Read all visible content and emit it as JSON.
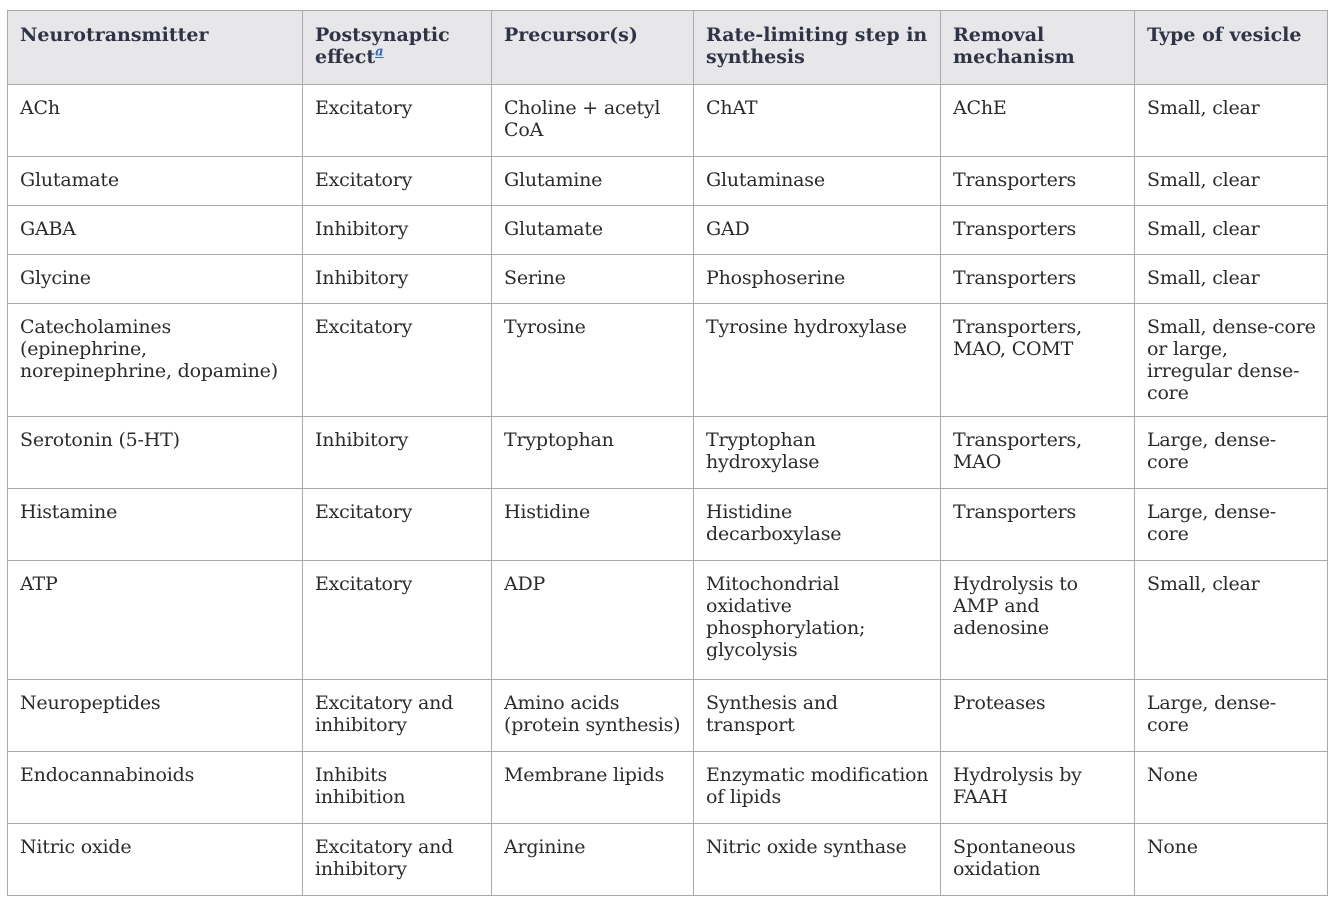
{
  "headers": {
    "neurotransmitter": "Neurotransmitter",
    "postsynaptic": "Postsynaptic effect",
    "footnote": "a",
    "precursor": "Precursor(s)",
    "rate_limiting": "Rate-limiting step in synthesis",
    "removal": "Removal mechanism",
    "vesicle": "Type of vesicle"
  },
  "rows": [
    {
      "nt": "ACh",
      "effect": "Excitatory",
      "precursor": "Choline + acetyl CoA",
      "rate": "ChAT",
      "removal": "AChE",
      "vesicle": "Small, clear"
    },
    {
      "nt": "Glutamate",
      "effect": "Excitatory",
      "precursor": "Glutamine",
      "rate": "Glutaminase",
      "removal": "Transporters",
      "vesicle": "Small, clear"
    },
    {
      "nt": "GABA",
      "effect": "Inhibitory",
      "precursor": "Glutamate",
      "rate": "GAD",
      "removal": "Transporters",
      "vesicle": "Small, clear"
    },
    {
      "nt": "Glycine",
      "effect": "Inhibitory",
      "precursor": "Serine",
      "rate": "Phosphoserine",
      "removal": "Transporters",
      "vesicle": "Small, clear"
    },
    {
      "nt": "Catecholamines (epinephrine, norepinephrine, dopamine)",
      "effect": "Excitatory",
      "precursor": "Tyrosine",
      "rate": "Tyrosine hydroxylase",
      "removal": "Transporters, MAO, COMT",
      "vesicle": "Small, dense-core or large, irregular dense-core"
    },
    {
      "nt": "Serotonin (5-HT)",
      "effect": "Inhibitory",
      "precursor": "Tryptophan",
      "rate": "Tryptophan hydroxylase",
      "removal": "Transporters, MAO",
      "vesicle": "Large, dense-core"
    },
    {
      "nt": "Histamine",
      "effect": "Excitatory",
      "precursor": "Histidine",
      "rate": "Histidine decarboxylase",
      "removal": "Transporters",
      "vesicle": "Large, dense-core"
    },
    {
      "nt": "ATP",
      "effect": "Excitatory",
      "precursor": "ADP",
      "rate": "Mitochondrial oxidative phosphorylation; glycolysis",
      "removal": "Hydrolysis to AMP and adenosine",
      "vesicle": "Small, clear"
    },
    {
      "nt": "Neuropeptides",
      "effect": "Excitatory and inhibitory",
      "precursor": "Amino acids (protein synthesis)",
      "rate": "Synthesis and transport",
      "removal": "Proteases",
      "vesicle": "Large, dense-core"
    },
    {
      "nt": "Endocannabinoids",
      "effect": "Inhibits inhibition",
      "precursor": "Membrane lipids",
      "rate": "Enzymatic modification of lipids",
      "removal": "Hydrolysis by FAAH",
      "vesicle": "None"
    },
    {
      "nt": "Nitric oxide",
      "effect": "Excitatory and inhibitory",
      "precursor": "Arginine",
      "rate": "Nitric oxide synthase",
      "removal": "Spontaneous oxidation",
      "vesicle": "None"
    }
  ]
}
